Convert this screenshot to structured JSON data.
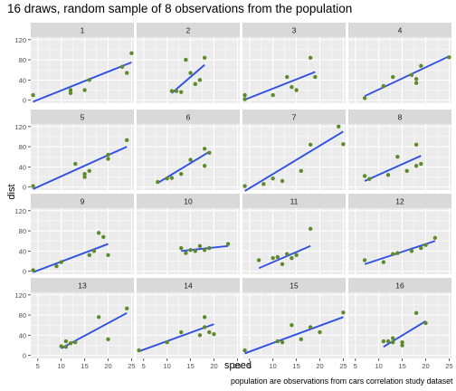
{
  "chart_data": {
    "type": "scatter",
    "title": "16 draws, random sample of 8 observations from the population",
    "xlabel": "speed",
    "ylabel": "dist",
    "caption": "population are observations from cars correlation study dataset",
    "xlim": [
      3.5,
      25.5
    ],
    "ylim": [
      -6,
      125
    ],
    "x_ticks": [
      5,
      10,
      15,
      20,
      25
    ],
    "y_ticks": [
      0,
      40,
      80,
      120
    ],
    "y_tick_labels": [
      "0",
      "40",
      "80",
      "120"
    ],
    "grid": true,
    "colors": {
      "point": "#5e8a2a",
      "line": "#3050e0",
      "panel": "#ebebeb",
      "strip": "#d9d9d9",
      "grid": "#ffffff"
    },
    "panels": [
      {
        "label": "1",
        "points": [
          [
            4,
            10
          ],
          [
            12,
            14
          ],
          [
            12,
            20
          ],
          [
            15,
            20
          ],
          [
            16,
            40
          ],
          [
            23,
            66
          ],
          [
            24,
            54
          ],
          [
            25,
            93
          ]
        ],
        "fit": [
          [
            4,
            -3
          ],
          [
            25,
            75
          ]
        ]
      },
      {
        "label": "2",
        "points": [
          [
            12,
            18
          ],
          [
            13,
            16
          ],
          [
            14,
            80
          ],
          [
            15,
            54
          ],
          [
            16,
            32
          ],
          [
            17,
            40
          ],
          [
            18,
            84
          ],
          [
            11,
            18
          ]
        ],
        "fit": [
          [
            11,
            14
          ],
          [
            18,
            70
          ]
        ]
      },
      {
        "label": "3",
        "points": [
          [
            4,
            2
          ],
          [
            4,
            10
          ],
          [
            10,
            10
          ],
          [
            13,
            46
          ],
          [
            14,
            26
          ],
          [
            15,
            20
          ],
          [
            18,
            84
          ],
          [
            19,
            46
          ]
        ],
        "fit": [
          [
            4,
            1
          ],
          [
            19,
            56
          ]
        ]
      },
      {
        "label": "4",
        "points": [
          [
            7,
            4
          ],
          [
            11,
            28
          ],
          [
            13,
            46
          ],
          [
            17,
            50
          ],
          [
            18,
            42
          ],
          [
            18,
            34
          ],
          [
            19,
            68
          ],
          [
            25,
            85
          ]
        ],
        "fit": [
          [
            7,
            8
          ],
          [
            25,
            87
          ]
        ]
      },
      {
        "label": "5",
        "points": [
          [
            4,
            2
          ],
          [
            13,
            46
          ],
          [
            15,
            20
          ],
          [
            16,
            32
          ],
          [
            20,
            56
          ],
          [
            20,
            64
          ],
          [
            24,
            93
          ],
          [
            15,
            26
          ]
        ],
        "fit": [
          [
            4,
            -4
          ],
          [
            24,
            80
          ]
        ]
      },
      {
        "label": "6",
        "points": [
          [
            8,
            10
          ],
          [
            10,
            17
          ],
          [
            11,
            18
          ],
          [
            13,
            26
          ],
          [
            15,
            54
          ],
          [
            18,
            76
          ],
          [
            18,
            42
          ],
          [
            19,
            68
          ]
        ],
        "fit": [
          [
            8,
            8
          ],
          [
            19,
            70
          ]
        ]
      },
      {
        "label": "7",
        "points": [
          [
            4,
            2
          ],
          [
            8,
            6
          ],
          [
            10,
            17
          ],
          [
            12,
            12
          ],
          [
            16,
            32
          ],
          [
            18,
            84
          ],
          [
            24,
            120
          ],
          [
            25,
            85
          ]
        ],
        "fit": [
          [
            4,
            -8
          ],
          [
            25,
            110
          ]
        ]
      },
      {
        "label": "8",
        "points": [
          [
            7,
            22
          ],
          [
            8,
            16
          ],
          [
            12,
            24
          ],
          [
            14,
            60
          ],
          [
            16,
            32
          ],
          [
            18,
            84
          ],
          [
            18,
            42
          ],
          [
            19,
            46
          ]
        ],
        "fit": [
          [
            7,
            12
          ],
          [
            19,
            62
          ]
        ]
      },
      {
        "label": "9",
        "points": [
          [
            4,
            2
          ],
          [
            9,
            10
          ],
          [
            10,
            18
          ],
          [
            16,
            32
          ],
          [
            17,
            40
          ],
          [
            18,
            76
          ],
          [
            19,
            68
          ],
          [
            20,
            32
          ]
        ],
        "fit": [
          [
            4,
            -2
          ],
          [
            20,
            54
          ]
        ]
      },
      {
        "label": "10",
        "points": [
          [
            13,
            46
          ],
          [
            14,
            36
          ],
          [
            15,
            42
          ],
          [
            16,
            40
          ],
          [
            17,
            50
          ],
          [
            18,
            42
          ],
          [
            19,
            46
          ],
          [
            23,
            54
          ]
        ],
        "fit": [
          [
            13,
            40
          ],
          [
            23,
            50
          ]
        ]
      },
      {
        "label": "11",
        "points": [
          [
            7,
            22
          ],
          [
            10,
            26
          ],
          [
            11,
            28
          ],
          [
            12,
            14
          ],
          [
            13,
            34
          ],
          [
            14,
            26
          ],
          [
            15,
            32
          ],
          [
            18,
            84
          ]
        ],
        "fit": [
          [
            7,
            6
          ],
          [
            18,
            50
          ]
        ]
      },
      {
        "label": "12",
        "points": [
          [
            7,
            22
          ],
          [
            11,
            18
          ],
          [
            13,
            34
          ],
          [
            14,
            36
          ],
          [
            17,
            40
          ],
          [
            19,
            46
          ],
          [
            20,
            52
          ],
          [
            22,
            66
          ]
        ],
        "fit": [
          [
            7,
            14
          ],
          [
            22,
            60
          ]
        ]
      },
      {
        "label": "13",
        "points": [
          [
            10,
            18
          ],
          [
            11,
            17
          ],
          [
            11,
            28
          ],
          [
            12,
            24
          ],
          [
            13,
            26
          ],
          [
            18,
            76
          ],
          [
            20,
            32
          ],
          [
            24,
            93
          ]
        ],
        "fit": [
          [
            10,
            14
          ],
          [
            24,
            84
          ]
        ]
      },
      {
        "label": "14",
        "points": [
          [
            4,
            10
          ],
          [
            10,
            26
          ],
          [
            13,
            46
          ],
          [
            17,
            40
          ],
          [
            18,
            76
          ],
          [
            18,
            56
          ],
          [
            19,
            46
          ],
          [
            20,
            42
          ]
        ],
        "fit": [
          [
            4,
            8
          ],
          [
            20,
            62
          ]
        ]
      },
      {
        "label": "15",
        "points": [
          [
            4,
            10
          ],
          [
            11,
            28
          ],
          [
            12,
            26
          ],
          [
            14,
            60
          ],
          [
            16,
            32
          ],
          [
            18,
            56
          ],
          [
            20,
            46
          ],
          [
            25,
            85
          ]
        ],
        "fit": [
          [
            4,
            4
          ],
          [
            25,
            76
          ]
        ]
      },
      {
        "label": "16",
        "points": [
          [
            11,
            28
          ],
          [
            12,
            28
          ],
          [
            13,
            26
          ],
          [
            13,
            34
          ],
          [
            15,
            26
          ],
          [
            15,
            20
          ],
          [
            18,
            84
          ],
          [
            20,
            64
          ]
        ],
        "fit": [
          [
            11,
            17
          ],
          [
            20,
            68
          ]
        ]
      }
    ]
  }
}
